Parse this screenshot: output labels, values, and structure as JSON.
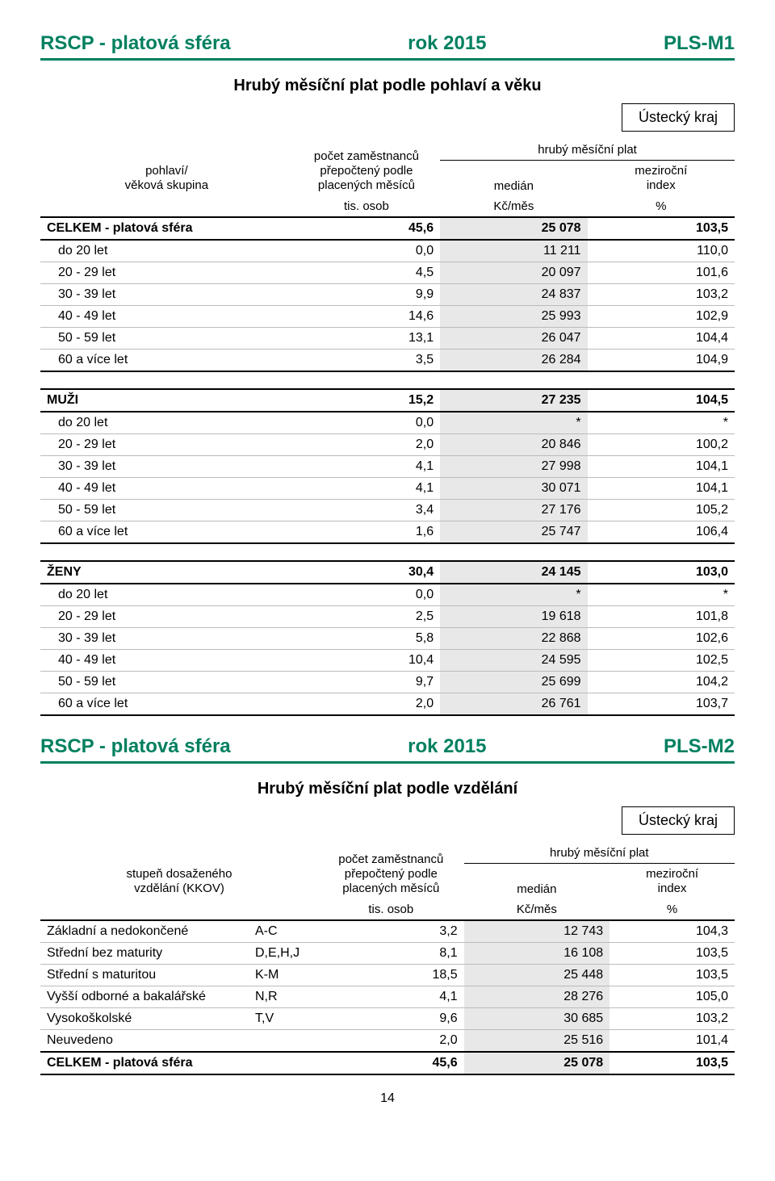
{
  "table1": {
    "header": {
      "left": "RSCP - platová sféra",
      "center": "rok 2015",
      "right": "PLS-M1"
    },
    "subtitle": "Hrubý měsíční plat podle pohlaví a věku",
    "region": "Ústecký kraj",
    "col_headers": {
      "group_line1": "pohlaví/",
      "group_line2": "věková skupina",
      "count_line1": "počet zaměstnanců",
      "count_line2": "přepočtený podle",
      "count_line3": "placených měsíců",
      "plat": "hrubý měsíční plat",
      "median": "medián",
      "index_line1": "meziroční",
      "index_line2": "index",
      "unit_count": "tis. osob",
      "unit_median": "Kč/měs",
      "unit_index": "%"
    },
    "sections": [
      {
        "title": "CELKEM - platová sféra",
        "count": "45,6",
        "median": "25 078",
        "index": "103,5",
        "rows": [
          {
            "label": "do 20 let",
            "count": "0,0",
            "median": "11 211",
            "index": "110,0"
          },
          {
            "label": "20 - 29 let",
            "count": "4,5",
            "median": "20 097",
            "index": "101,6"
          },
          {
            "label": "30 - 39 let",
            "count": "9,9",
            "median": "24 837",
            "index": "103,2"
          },
          {
            "label": "40 - 49 let",
            "count": "14,6",
            "median": "25 993",
            "index": "102,9"
          },
          {
            "label": "50 - 59 let",
            "count": "13,1",
            "median": "26 047",
            "index": "104,4"
          },
          {
            "label": "60 a více let",
            "count": "3,5",
            "median": "26 284",
            "index": "104,9"
          }
        ]
      },
      {
        "title": "MUŽI",
        "count": "15,2",
        "median": "27 235",
        "index": "104,5",
        "rows": [
          {
            "label": "do 20 let",
            "count": "0,0",
            "median": "*",
            "index": "*"
          },
          {
            "label": "20 - 29 let",
            "count": "2,0",
            "median": "20 846",
            "index": "100,2"
          },
          {
            "label": "30 - 39 let",
            "count": "4,1",
            "median": "27 998",
            "index": "104,1"
          },
          {
            "label": "40 - 49 let",
            "count": "4,1",
            "median": "30 071",
            "index": "104,1"
          },
          {
            "label": "50 - 59 let",
            "count": "3,4",
            "median": "27 176",
            "index": "105,2"
          },
          {
            "label": "60 a více let",
            "count": "1,6",
            "median": "25 747",
            "index": "106,4"
          }
        ]
      },
      {
        "title": "ŽENY",
        "count": "30,4",
        "median": "24 145",
        "index": "103,0",
        "rows": [
          {
            "label": "do 20 let",
            "count": "0,0",
            "median": "*",
            "index": "*"
          },
          {
            "label": "20 - 29 let",
            "count": "2,5",
            "median": "19 618",
            "index": "101,8"
          },
          {
            "label": "30 - 39 let",
            "count": "5,8",
            "median": "22 868",
            "index": "102,6"
          },
          {
            "label": "40 - 49 let",
            "count": "10,4",
            "median": "24 595",
            "index": "102,5"
          },
          {
            "label": "50 - 59 let",
            "count": "9,7",
            "median": "25 699",
            "index": "104,2"
          },
          {
            "label": "60 a více let",
            "count": "2,0",
            "median": "26 761",
            "index": "103,7"
          }
        ]
      }
    ]
  },
  "table2": {
    "header": {
      "left": "RSCP - platová sféra",
      "center": "rok 2015",
      "right": "PLS-M2"
    },
    "subtitle": "Hrubý měsíční plat podle vzdělání",
    "region": "Ústecký kraj",
    "col_headers": {
      "group_line1": "stupeň dosaženého",
      "group_line2": "vzdělání (KKOV)",
      "count_line1": "počet zaměstnanců",
      "count_line2": "přepočtený podle",
      "count_line3": "placených měsíců",
      "plat": "hrubý měsíční plat",
      "median": "medián",
      "index_line1": "meziroční",
      "index_line2": "index",
      "unit_count": "tis. osob",
      "unit_median": "Kč/měs",
      "unit_index": "%"
    },
    "rows": [
      {
        "label": "Základní a nedokončené",
        "code": "A-C",
        "count": "3,2",
        "median": "12 743",
        "index": "104,3"
      },
      {
        "label": "Střední bez maturity",
        "code": "D,E,H,J",
        "count": "8,1",
        "median": "16 108",
        "index": "103,5"
      },
      {
        "label": "Střední s maturitou",
        "code": "K-M",
        "count": "18,5",
        "median": "25 448",
        "index": "103,5"
      },
      {
        "label": "Vyšší odborné a bakalářské",
        "code": "N,R",
        "count": "4,1",
        "median": "28 276",
        "index": "105,0"
      },
      {
        "label": "Vysokoškolské",
        "code": "T,V",
        "count": "9,6",
        "median": "30 685",
        "index": "103,2"
      },
      {
        "label": "Neuvedeno",
        "code": "",
        "count": "2,0",
        "median": "25 516",
        "index": "101,4"
      }
    ],
    "total": {
      "label": "CELKEM - platová sféra",
      "count": "45,6",
      "median": "25 078",
      "index": "103,5"
    }
  },
  "pagenum": "14"
}
